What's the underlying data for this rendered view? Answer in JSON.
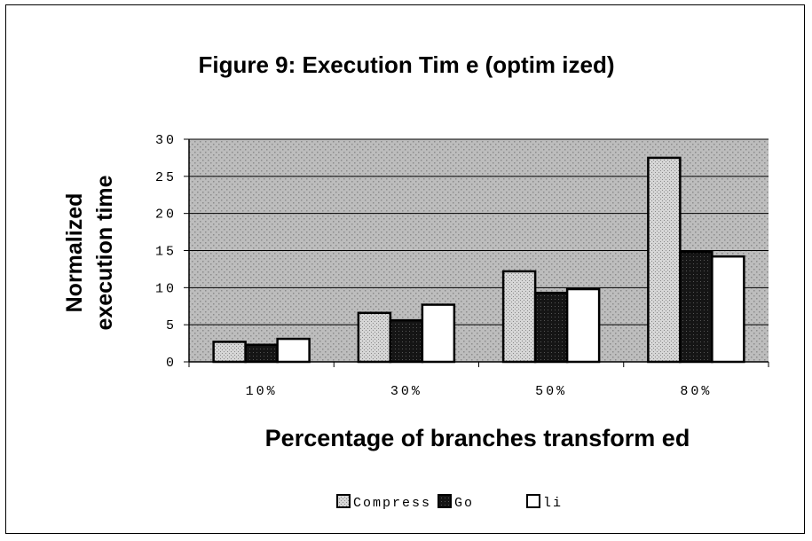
{
  "chart_data": {
    "type": "bar",
    "title": "Figure 9: Execution Tim e (optim ized)",
    "ylabel_line1": "Normalized",
    "ylabel_line2": "execution time",
    "xlabel": "Percentage of branches transform ed",
    "categories": [
      "10%",
      "30%",
      "50%",
      "80%"
    ],
    "y_ticks": [
      "0",
      "5",
      "10",
      "15",
      "20",
      "25",
      "30"
    ],
    "ylim": [
      0,
      30
    ],
    "grid": true,
    "legend_position": "bottom",
    "series": [
      {
        "name": "Compress",
        "values": [
          2.7,
          6.6,
          12.2,
          27.5
        ],
        "color": "#c8c8c8"
      },
      {
        "name": "Go",
        "values": [
          2.3,
          5.6,
          9.3,
          14.8
        ],
        "color": "#111111"
      },
      {
        "name": "li",
        "values": [
          3.1,
          7.7,
          9.8,
          14.2
        ],
        "color": "#ffffff"
      }
    ],
    "plot_background": "#b0b0b0"
  }
}
